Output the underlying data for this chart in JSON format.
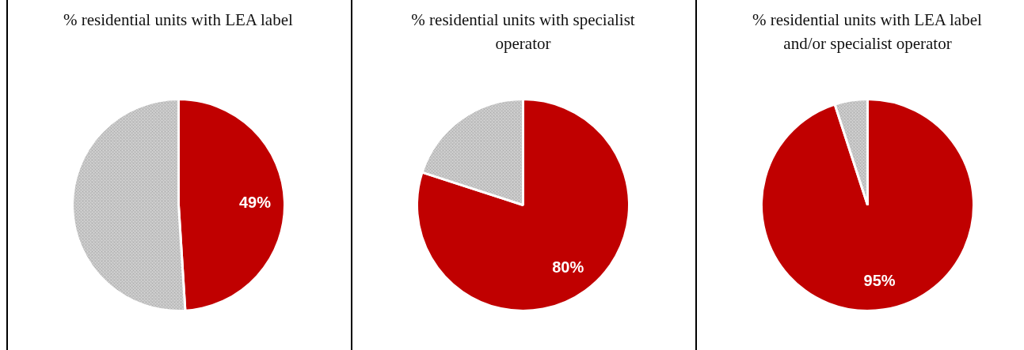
{
  "chart_data": [
    {
      "type": "pie",
      "title": "% residential units with LEA label",
      "categories": [
        null,
        null
      ],
      "values": [
        49,
        51
      ],
      "colors": [
        "#c00000",
        "#d0d0d0"
      ],
      "value_labels": [
        "49%",
        null
      ]
    },
    {
      "type": "pie",
      "title": "% residential units with specialist operator",
      "categories": [
        null,
        null
      ],
      "values": [
        80,
        20
      ],
      "colors": [
        "#c00000",
        "#d0d0d0"
      ],
      "value_labels": [
        "80%",
        null
      ]
    },
    {
      "type": "pie",
      "title": "% residential units with LEA label and/or specialist operator",
      "categories": [
        null,
        null
      ],
      "values": [
        95,
        5
      ],
      "colors": [
        "#c00000",
        "#d0d0d0"
      ],
      "value_labels": [
        "95%",
        null
      ]
    }
  ]
}
